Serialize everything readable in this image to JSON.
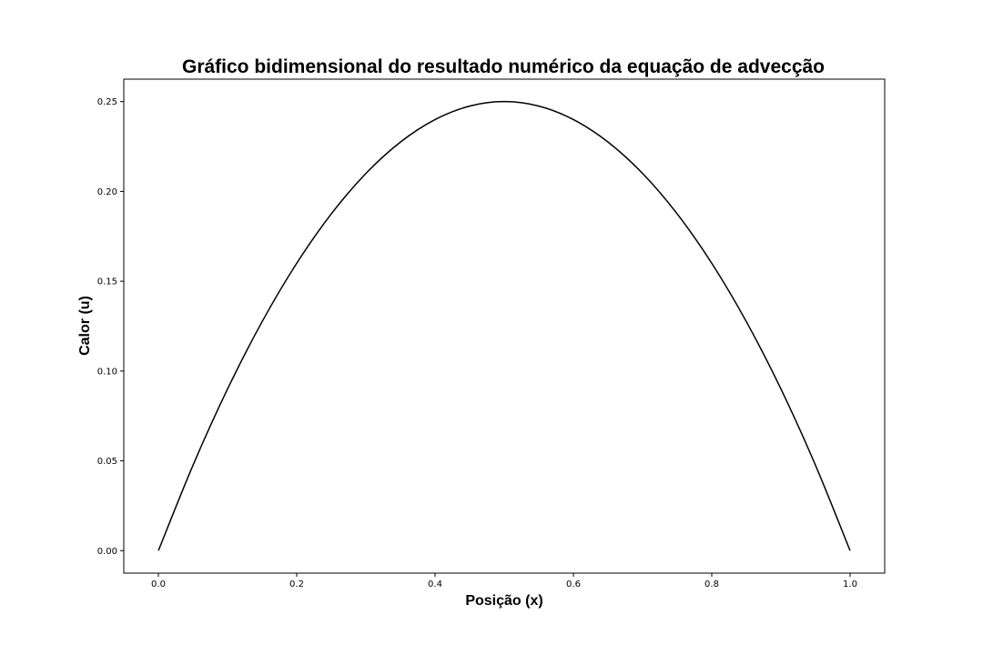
{
  "chart_data": {
    "type": "line",
    "title": "Gráfico bidimensional do resultado numérico da equação de advecção",
    "xlabel": "Posição (x)",
    "ylabel": "Calor (u)",
    "xlim": [
      -0.05,
      1.05
    ],
    "ylim": [
      -0.0125,
      0.2625
    ],
    "x_ticks": [
      0.0,
      0.2,
      0.4,
      0.6,
      0.8,
      1.0
    ],
    "x_tick_labels": [
      "0.0",
      "0.2",
      "0.4",
      "0.6",
      "0.8",
      "1.0"
    ],
    "y_ticks": [
      0.0,
      0.05,
      0.1,
      0.15,
      0.2,
      0.25
    ],
    "y_tick_labels": [
      "0.00",
      "0.05",
      "0.10",
      "0.15",
      "0.20",
      "0.25"
    ],
    "grid": false,
    "legend": "none",
    "series": [
      {
        "color": "#000000",
        "x": [
          0.0,
          0.05,
          0.1,
          0.15,
          0.2,
          0.25,
          0.3,
          0.35,
          0.4,
          0.45,
          0.5,
          0.55,
          0.6,
          0.65,
          0.7,
          0.75,
          0.8,
          0.85,
          0.9,
          0.95,
          1.0
        ],
        "y": [
          0.0,
          0.0475,
          0.09,
          0.1275,
          0.16,
          0.1875,
          0.21,
          0.2275,
          0.24,
          0.2475,
          0.25,
          0.2475,
          0.24,
          0.2275,
          0.21,
          0.1875,
          0.16,
          0.1275,
          0.09,
          0.0475,
          0.0
        ]
      }
    ]
  }
}
